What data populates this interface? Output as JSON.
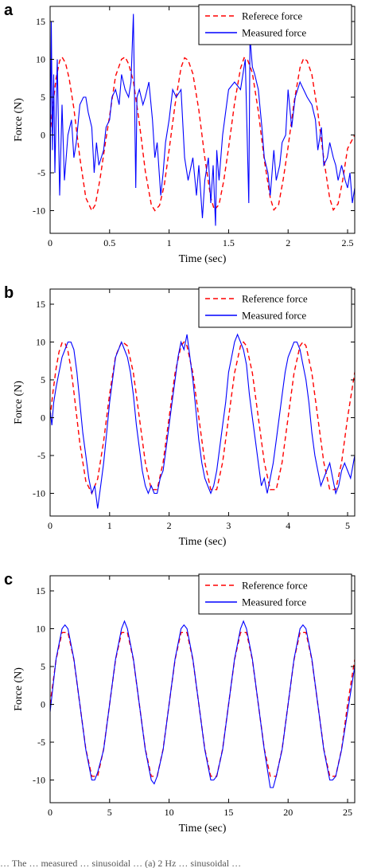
{
  "colors": {
    "reference": "#ff0000",
    "measured": "#0000ff",
    "axis": "#000000"
  },
  "caption": "… The … measured … sinusoidal … (a) 2 Hz … sinusoidal …",
  "chart_data": [
    {
      "type": "line",
      "panel_label": "a",
      "xlabel": "Time (sec)",
      "ylabel": "Force (N)",
      "xlim": [
        0,
        2.56
      ],
      "ylim": [
        -13,
        17
      ],
      "xticks": [
        0,
        0.5,
        1,
        1.5,
        2,
        2.5
      ],
      "xtick_labels": [
        "0",
        "0.5",
        "1",
        "1.5",
        "2",
        "2.5"
      ],
      "yticks": [
        -10,
        -5,
        0,
        5,
        10,
        15
      ],
      "ytick_labels": [
        "-10",
        "-5",
        "0",
        "5",
        "10",
        "15"
      ],
      "grid": false,
      "legend_position": "top-right",
      "series": [
        {
          "name": "Referece force",
          "style": "dashed",
          "color": "#ff0000",
          "x": [
            0,
            0.02,
            0.05,
            0.08,
            0.1,
            0.13,
            0.16,
            0.2,
            0.25,
            0.3,
            0.35,
            0.38,
            0.42,
            0.46,
            0.5,
            0.55,
            0.6,
            0.63,
            0.66,
            0.7,
            0.75,
            0.8,
            0.85,
            0.88,
            0.92,
            0.96,
            1.0,
            1.05,
            1.1,
            1.13,
            1.16,
            1.2,
            1.25,
            1.3,
            1.35,
            1.38,
            1.42,
            1.46,
            1.5,
            1.55,
            1.6,
            1.63,
            1.66,
            1.7,
            1.75,
            1.8,
            1.85,
            1.88,
            1.92,
            1.96,
            2.0,
            2.05,
            2.1,
            2.13,
            2.16,
            2.2,
            2.25,
            2.3,
            2.35,
            2.38,
            2.42,
            2.46,
            2.5,
            2.56
          ],
          "y": [
            0,
            3.5,
            7.5,
            9.8,
            10.3,
            9.5,
            7.5,
            3.5,
            -3,
            -8.3,
            -10,
            -9.2,
            -5.8,
            -1.5,
            2.5,
            7.8,
            10,
            10.3,
            9.4,
            7.1,
            1.6,
            -4.8,
            -9.2,
            -10,
            -9.3,
            -6.6,
            -2,
            4,
            8.9,
            10.2,
            9.9,
            8.1,
            3.3,
            -3,
            -8.3,
            -9.9,
            -9.2,
            -6,
            -1.7,
            4.2,
            8.8,
            10.2,
            9.9,
            8.2,
            3.1,
            -3.3,
            -8.3,
            -9.9,
            -9.2,
            -5.8,
            -1.6,
            4.3,
            8.9,
            10.1,
            9.8,
            8,
            3,
            -3.2,
            -8.4,
            -9.9,
            -9.1,
            -5.9,
            -1.8,
            0
          ]
        },
        {
          "name": "Measured force",
          "style": "solid",
          "color": "#0000ff",
          "x": [
            0,
            0.01,
            0.02,
            0.03,
            0.04,
            0.06,
            0.08,
            0.1,
            0.12,
            0.15,
            0.18,
            0.2,
            0.22,
            0.25,
            0.28,
            0.3,
            0.32,
            0.35,
            0.37,
            0.39,
            0.41,
            0.43,
            0.45,
            0.47,
            0.5,
            0.52,
            0.55,
            0.58,
            0.6,
            0.63,
            0.66,
            0.68,
            0.7,
            0.72,
            0.73,
            0.75,
            0.78,
            0.8,
            0.83,
            0.86,
            0.88,
            0.9,
            0.93,
            0.95,
            0.97,
            1.0,
            1.03,
            1.06,
            1.1,
            1.13,
            1.16,
            1.2,
            1.23,
            1.25,
            1.28,
            1.3,
            1.33,
            1.35,
            1.37,
            1.39,
            1.4,
            1.42,
            1.45,
            1.5,
            1.55,
            1.6,
            1.64,
            1.67,
            1.68,
            1.7,
            1.72,
            1.75,
            1.78,
            1.8,
            1.83,
            1.85,
            1.88,
            1.9,
            1.93,
            1.95,
            1.98,
            2.0,
            2.03,
            2.06,
            2.1,
            2.13,
            2.16,
            2.2,
            2.23,
            2.25,
            2.28,
            2.3,
            2.33,
            2.35,
            2.38,
            2.4,
            2.42,
            2.45,
            2.48,
            2.5,
            2.52,
            2.54,
            2.56
          ],
          "y": [
            -8,
            15,
            -2,
            8,
            -5,
            10,
            -8,
            4,
            -6,
            0,
            2,
            -3,
            -1,
            4,
            5,
            5,
            3,
            1,
            -5,
            -1,
            -4,
            -3,
            -2,
            1,
            2,
            5,
            6,
            4,
            8,
            6,
            5,
            7,
            16,
            -7,
            5,
            6,
            4,
            5,
            7,
            2,
            -3,
            -1,
            -8,
            -5,
            -1,
            2,
            6,
            5,
            6,
            -3,
            -6,
            -3,
            -8,
            -4,
            -11,
            -6,
            -3,
            -9,
            -4,
            -12,
            -2,
            -6,
            0,
            6,
            7,
            6,
            10,
            -9,
            13,
            9,
            8,
            6,
            1,
            -3,
            -5,
            -8,
            -2,
            -6,
            -4,
            -1,
            0,
            6,
            1,
            5,
            7,
            6,
            5,
            4,
            2,
            -2,
            1,
            -4,
            -3,
            -1,
            -3,
            -4,
            -6,
            -4,
            -6,
            -7,
            -5,
            -9,
            -7
          ]
        }
      ]
    },
    {
      "type": "line",
      "panel_label": "b",
      "xlabel": "Time (sec)",
      "ylabel": "Force (N)",
      "xlim": [
        0,
        5.12
      ],
      "ylim": [
        -13,
        17
      ],
      "xticks": [
        0,
        1,
        2,
        3,
        4,
        5
      ],
      "xtick_labels": [
        "0",
        "1",
        "2",
        "3",
        "4",
        "5"
      ],
      "yticks": [
        -10,
        -5,
        0,
        5,
        10,
        15
      ],
      "ytick_labels": [
        "-10",
        "-5",
        "0",
        "5",
        "10",
        "15"
      ],
      "grid": false,
      "legend_position": "top-right",
      "series": [
        {
          "name": "Reference force",
          "style": "dashed",
          "color": "#ff0000",
          "x": [
            0,
            0.05,
            0.1,
            0.15,
            0.2,
            0.25,
            0.3,
            0.35,
            0.4,
            0.5,
            0.6,
            0.7,
            0.8,
            0.9,
            1.0,
            1.1,
            1.2,
            1.25,
            1.3,
            1.4,
            1.5,
            1.6,
            1.7,
            1.8,
            1.9,
            2.0,
            2.1,
            2.2,
            2.25,
            2.3,
            2.4,
            2.5,
            2.6,
            2.7,
            2.8,
            2.9,
            3.0,
            3.1,
            3.2,
            3.25,
            3.3,
            3.4,
            3.5,
            3.6,
            3.7,
            3.8,
            3.9,
            4.0,
            4.1,
            4.2,
            4.25,
            4.3,
            4.4,
            4.5,
            4.6,
            4.7,
            4.8,
            4.9,
            5.0,
            5.12
          ],
          "y": [
            0,
            3.5,
            6.5,
            8.7,
            9.9,
            9.9,
            8.8,
            6.5,
            3.4,
            -3.4,
            -8.4,
            -10,
            -8.1,
            -3.1,
            3.1,
            8.1,
            10,
            9.8,
            9.5,
            5.9,
            0,
            -5.9,
            -9.5,
            -9.5,
            -5.9,
            0,
            5.9,
            9.5,
            10,
            9.5,
            5.9,
            0,
            -5.9,
            -9.5,
            -9.5,
            -5.9,
            0,
            5.9,
            9.5,
            10,
            9.5,
            5.9,
            0,
            -5.9,
            -9.5,
            -9.5,
            -5.9,
            0,
            5.9,
            9.5,
            10,
            9.5,
            5.9,
            0,
            -5.9,
            -9.5,
            -9.5,
            -5.9,
            0,
            6
          ]
        },
        {
          "name": "Measured force",
          "style": "solid",
          "color": "#0000ff",
          "x": [
            0,
            0.03,
            0.06,
            0.1,
            0.15,
            0.2,
            0.25,
            0.3,
            0.35,
            0.4,
            0.45,
            0.5,
            0.55,
            0.6,
            0.65,
            0.7,
            0.75,
            0.8,
            0.85,
            0.9,
            0.95,
            1.0,
            1.05,
            1.1,
            1.15,
            1.2,
            1.25,
            1.3,
            1.35,
            1.4,
            1.45,
            1.5,
            1.55,
            1.6,
            1.65,
            1.7,
            1.75,
            1.8,
            1.85,
            1.9,
            1.95,
            2.0,
            2.05,
            2.1,
            2.15,
            2.2,
            2.25,
            2.3,
            2.35,
            2.4,
            2.45,
            2.5,
            2.55,
            2.6,
            2.65,
            2.7,
            2.75,
            2.8,
            2.85,
            2.9,
            2.95,
            3.0,
            3.05,
            3.1,
            3.15,
            3.2,
            3.25,
            3.3,
            3.35,
            3.4,
            3.45,
            3.5,
            3.55,
            3.6,
            3.65,
            3.7,
            3.75,
            3.8,
            3.85,
            3.9,
            3.95,
            4.0,
            4.05,
            4.1,
            4.15,
            4.2,
            4.25,
            4.3,
            4.35,
            4.4,
            4.45,
            4.5,
            4.55,
            4.6,
            4.65,
            4.7,
            4.75,
            4.8,
            4.85,
            4.9,
            4.95,
            5.0,
            5.05,
            5.12
          ],
          "y": [
            1,
            -1,
            2,
            4,
            6,
            8,
            9,
            10,
            10,
            9,
            6,
            2,
            -2,
            -5,
            -8,
            -10,
            -9,
            -12,
            -9,
            -6,
            -2,
            2,
            5,
            8,
            9,
            10,
            9,
            8,
            6,
            3,
            -1,
            -4,
            -7,
            -9,
            -10,
            -9,
            -10,
            -10,
            -8,
            -7,
            -4,
            -1,
            2,
            5,
            8,
            10,
            9,
            11,
            8,
            5,
            1,
            -3,
            -6,
            -8,
            -9,
            -10,
            -9,
            -7,
            -4,
            -1,
            2,
            6,
            8,
            10,
            11,
            10,
            9,
            7,
            3,
            0,
            -3,
            -6,
            -9,
            -8,
            -10,
            -8,
            -6,
            -3,
            0,
            3,
            6,
            8,
            9,
            10,
            10,
            9,
            7,
            5,
            2,
            -2,
            -5,
            -7,
            -9,
            -8,
            -7,
            -6,
            -8,
            -10,
            -9,
            -7,
            -6,
            -7,
            -8,
            -5
          ]
        }
      ]
    },
    {
      "type": "line",
      "panel_label": "c",
      "xlabel": "Time (sec)",
      "ylabel": "Force (N)",
      "xlim": [
        0,
        25.6
      ],
      "ylim": [
        -13,
        17
      ],
      "xticks": [
        0,
        5,
        10,
        15,
        20,
        25
      ],
      "xtick_labels": [
        "0",
        "5",
        "10",
        "15",
        "20",
        "25"
      ],
      "yticks": [
        -10,
        -5,
        0,
        5,
        10,
        15
      ],
      "ytick_labels": [
        "-10",
        "-5",
        "0",
        "5",
        "10",
        "15"
      ],
      "grid": false,
      "legend_position": "top-right",
      "series": [
        {
          "name": "Reference force",
          "style": "dashed",
          "color": "#ff0000",
          "x": [
            0,
            0.5,
            1.0,
            1.5,
            2.0,
            2.5,
            3.0,
            3.5,
            4.0,
            4.5,
            5.0,
            5.5,
            6.0,
            6.5,
            7.0,
            7.5,
            8.0,
            8.5,
            9.0,
            9.5,
            10.0,
            10.5,
            11.0,
            11.5,
            12.0,
            12.5,
            13.0,
            13.5,
            14.0,
            14.5,
            15.0,
            15.5,
            16.0,
            16.5,
            17.0,
            17.5,
            18.0,
            18.5,
            19.0,
            19.5,
            20.0,
            20.5,
            21.0,
            21.5,
            22.0,
            22.5,
            23.0,
            23.5,
            24.0,
            24.5,
            25.0,
            25.6
          ],
          "y": [
            0,
            5.9,
            9.5,
            9.5,
            5.9,
            0,
            -5.9,
            -9.5,
            -9.5,
            -5.9,
            0,
            5.9,
            9.5,
            9.5,
            5.9,
            0,
            -5.9,
            -9.5,
            -9.5,
            -5.9,
            0,
            5.9,
            9.5,
            9.5,
            5.9,
            0,
            -5.9,
            -9.5,
            -9.5,
            -5.9,
            0,
            5.9,
            9.5,
            9.5,
            5.9,
            0,
            -5.9,
            -9.5,
            -9.5,
            -5.9,
            0,
            5.9,
            9.5,
            9.5,
            5.9,
            0,
            -5.9,
            -9.5,
            -9.5,
            -5.9,
            0,
            5.9
          ]
        },
        {
          "name": "Measured force",
          "style": "solid",
          "color": "#0000ff",
          "x": [
            0,
            0.5,
            1.0,
            1.25,
            1.5,
            2.0,
            2.5,
            3.0,
            3.5,
            3.75,
            4.0,
            4.5,
            5.0,
            5.5,
            6.0,
            6.25,
            6.5,
            7.0,
            7.5,
            8.0,
            8.5,
            8.75,
            9.0,
            9.5,
            10.0,
            10.5,
            11.0,
            11.25,
            11.5,
            12.0,
            12.5,
            13.0,
            13.5,
            13.75,
            14.0,
            14.5,
            15.0,
            15.5,
            16.0,
            16.25,
            16.5,
            17.0,
            17.5,
            18.0,
            18.5,
            18.75,
            19.0,
            19.5,
            20.0,
            20.5,
            21.0,
            21.25,
            21.5,
            22.0,
            22.5,
            23.0,
            23.5,
            23.75,
            24.0,
            24.5,
            25.0,
            25.6
          ],
          "y": [
            -1,
            6,
            10,
            10.5,
            10,
            6,
            0,
            -6,
            -10,
            -10,
            -9,
            -6,
            0,
            6,
            10,
            11,
            10,
            6,
            0,
            -6,
            -10,
            -10.5,
            -9.5,
            -6,
            0,
            6,
            10,
            10.5,
            10,
            6,
            0,
            -6,
            -10,
            -10,
            -9.5,
            -6,
            0,
            6,
            10,
            11,
            10,
            6,
            0,
            -6,
            -11,
            -11,
            -9.5,
            -6,
            0,
            6,
            10,
            10.5,
            10,
            6,
            0,
            -6,
            -10,
            -10,
            -9.5,
            -6,
            -1,
            5
          ]
        }
      ]
    }
  ]
}
